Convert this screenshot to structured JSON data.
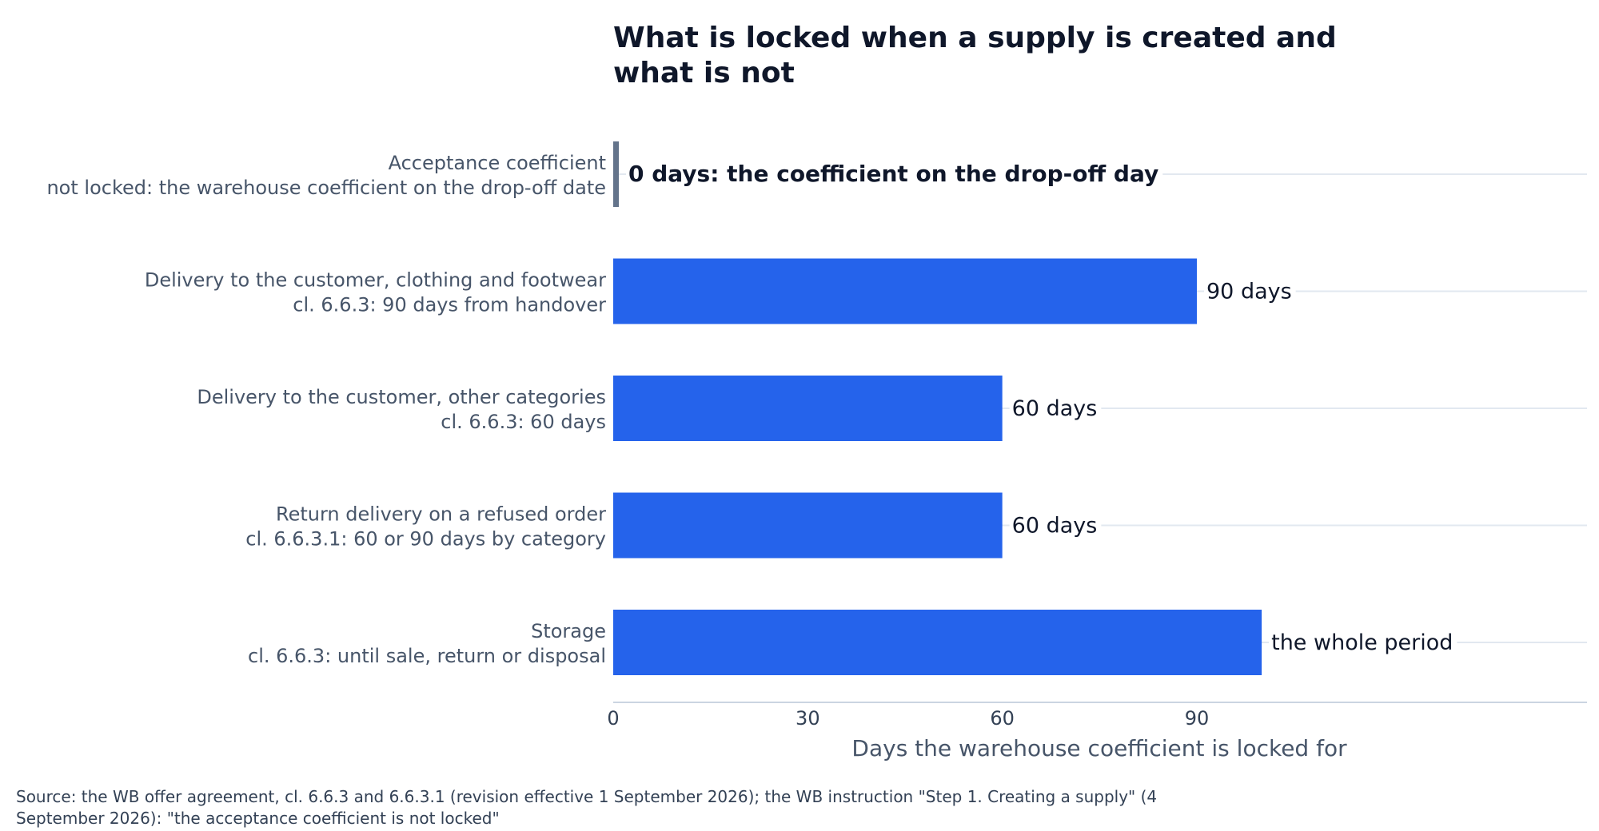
{
  "title": [
    "What is locked when a supply is created and",
    "what is not"
  ],
  "source": [
    "Source: the WB offer agreement, cl. 6.6.3 and 6.6.3.1 (revision effective 1 September 2026); the WB instruction \"Step 1. Creating a supply\" (4",
    "September 2026): \"the acceptance coefficient is not locked\""
  ],
  "colors": {
    "bar": "#2563eb",
    "zero_bar": "#64748b",
    "grid": "#e2e8f0",
    "axis": "#cbd5e1",
    "tick_text": "#334155",
    "category_text": "#475569",
    "label_text": "#0f172a"
  },
  "chart_data": {
    "type": "bar",
    "orientation": "horizontal",
    "categories": [
      [
        "Acceptance coefficient",
        "not locked: the warehouse coefficient on the drop-off date"
      ],
      [
        "Delivery to the customer, clothing and footwear",
        "cl. 6.6.3: 90 days from handover"
      ],
      [
        "Delivery to the customer, other categories",
        "cl. 6.6.3: 60 days"
      ],
      [
        "Return delivery on a refused order",
        "cl. 6.6.3.1: 60 or 90 days by category"
      ],
      [
        "Storage",
        "cl. 6.6.3: until sale, return or disposal"
      ]
    ],
    "values": [
      0,
      90,
      60,
      60,
      100
    ],
    "data_labels": [
      "0 days: the coefficient on the drop-off day",
      "90 days",
      "60 days",
      "60 days",
      "the whole period"
    ],
    "xlabel": "Days the warehouse coefficient is locked for",
    "xticks": [
      0,
      30,
      60,
      90
    ],
    "xlim": [
      0,
      150
    ],
    "grid": "horizontal lines at category rows",
    "legend": "none"
  }
}
